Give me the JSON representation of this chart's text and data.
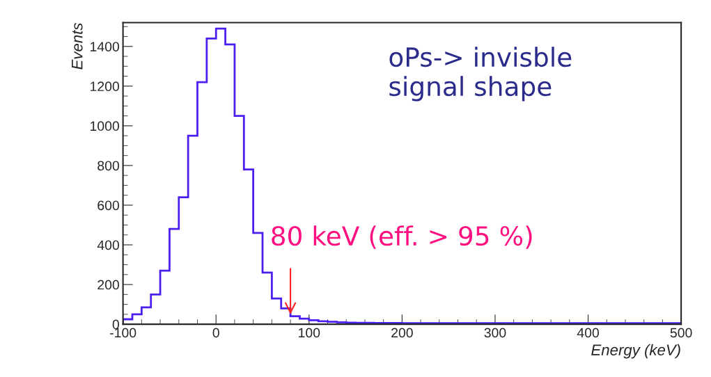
{
  "chart_data": {
    "type": "histogram",
    "xlabel": "Energy (keV)",
    "ylabel": "Events",
    "color": "#4b1ff0",
    "bins": [
      -100,
      -90,
      -80,
      -70,
      -60,
      -50,
      -40,
      -30,
      -20,
      -10,
      0,
      10,
      20,
      30,
      40,
      50,
      60,
      70,
      80,
      90,
      100,
      110,
      120,
      130,
      140,
      150,
      160,
      170,
      180,
      190,
      200,
      210,
      220,
      230,
      240,
      250,
      260,
      270,
      280,
      290,
      300,
      310,
      320,
      330,
      340,
      350,
      360,
      370,
      380,
      390,
      400,
      410,
      420,
      430,
      440,
      450,
      460,
      470,
      480,
      490,
      500
    ],
    "values": [
      25,
      50,
      85,
      150,
      270,
      480,
      640,
      950,
      1220,
      1440,
      1490,
      1410,
      1050,
      780,
      460,
      260,
      130,
      80,
      40,
      28,
      20,
      15,
      12,
      10,
      8,
      7,
      7,
      6,
      6,
      6,
      5,
      5,
      5,
      5,
      5,
      5,
      5,
      5,
      5,
      5,
      5,
      5,
      5,
      5,
      5,
      5,
      5,
      5,
      5,
      5,
      5,
      5,
      5,
      5,
      5,
      5,
      5,
      5,
      5,
      5
    ],
    "xlim": [
      -100,
      500
    ],
    "ylim": [
      0,
      1520
    ],
    "xticks": [
      -100,
      0,
      100,
      200,
      300,
      400,
      500
    ],
    "yticks": [
      0,
      200,
      400,
      600,
      800,
      1000,
      1200,
      1400
    ],
    "annotations": [
      "oPs-> invisble\nsignal shape",
      {
        "text": "80 keV (eff. > 95 %)",
        "x": 80,
        "y": 40
      }
    ],
    "grid": false,
    "legend": false
  }
}
